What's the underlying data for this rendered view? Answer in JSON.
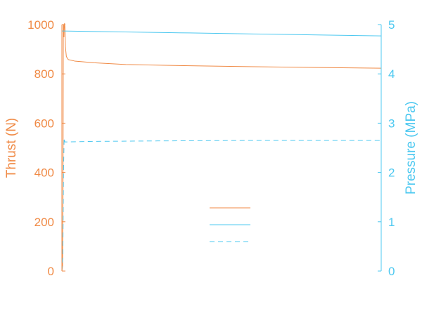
{
  "chart_data": {
    "type": "line",
    "title": "",
    "xlabel": "",
    "x_range": [
      0,
      100
    ],
    "y_left": {
      "label": "Thrust (N)",
      "range": [
        0,
        1000
      ],
      "ticks": [
        0,
        200,
        400,
        600,
        800,
        1000
      ],
      "color": "#F08A45"
    },
    "y_right": {
      "label": "Pressure (MPa)",
      "range": [
        0,
        5
      ],
      "ticks": [
        0,
        1,
        2,
        3,
        4,
        5
      ],
      "color": "#4CC8F0"
    },
    "grid": false,
    "legend": {
      "placement": "center",
      "labels_visible": false
    },
    "series": [
      {
        "axis": "left",
        "style": "solid",
        "color": "#F08A45",
        "points": [
          [
            0,
            0
          ],
          [
            0.2,
            20
          ],
          [
            0.35,
            320
          ],
          [
            0.45,
            995
          ],
          [
            0.55,
            1000
          ],
          [
            0.65,
            950
          ],
          [
            0.75,
            998
          ],
          [
            0.85,
            1005
          ],
          [
            0.95,
            990
          ],
          [
            1.1,
            910
          ],
          [
            1.4,
            870
          ],
          [
            2,
            858
          ],
          [
            4,
            852
          ],
          [
            10,
            845
          ],
          [
            20,
            838
          ],
          [
            40,
            833
          ],
          [
            60,
            829
          ],
          [
            80,
            826
          ],
          [
            100,
            823
          ]
        ]
      },
      {
        "axis": "right",
        "style": "solid",
        "color": "#4CC8F0",
        "points": [
          [
            0,
            4.87
          ],
          [
            20,
            4.85
          ],
          [
            40,
            4.83
          ],
          [
            60,
            4.81
          ],
          [
            80,
            4.79
          ],
          [
            100,
            4.77
          ]
        ]
      },
      {
        "axis": "right",
        "style": "dashed",
        "color": "#4CC8F0",
        "points": [
          [
            0,
            0
          ],
          [
            0.3,
            0.3
          ],
          [
            0.5,
            2.0
          ],
          [
            0.7,
            2.7
          ],
          [
            0.9,
            2.62
          ],
          [
            2,
            2.62
          ],
          [
            10,
            2.63
          ],
          [
            30,
            2.64
          ],
          [
            60,
            2.65
          ],
          [
            100,
            2.65
          ]
        ]
      }
    ]
  }
}
